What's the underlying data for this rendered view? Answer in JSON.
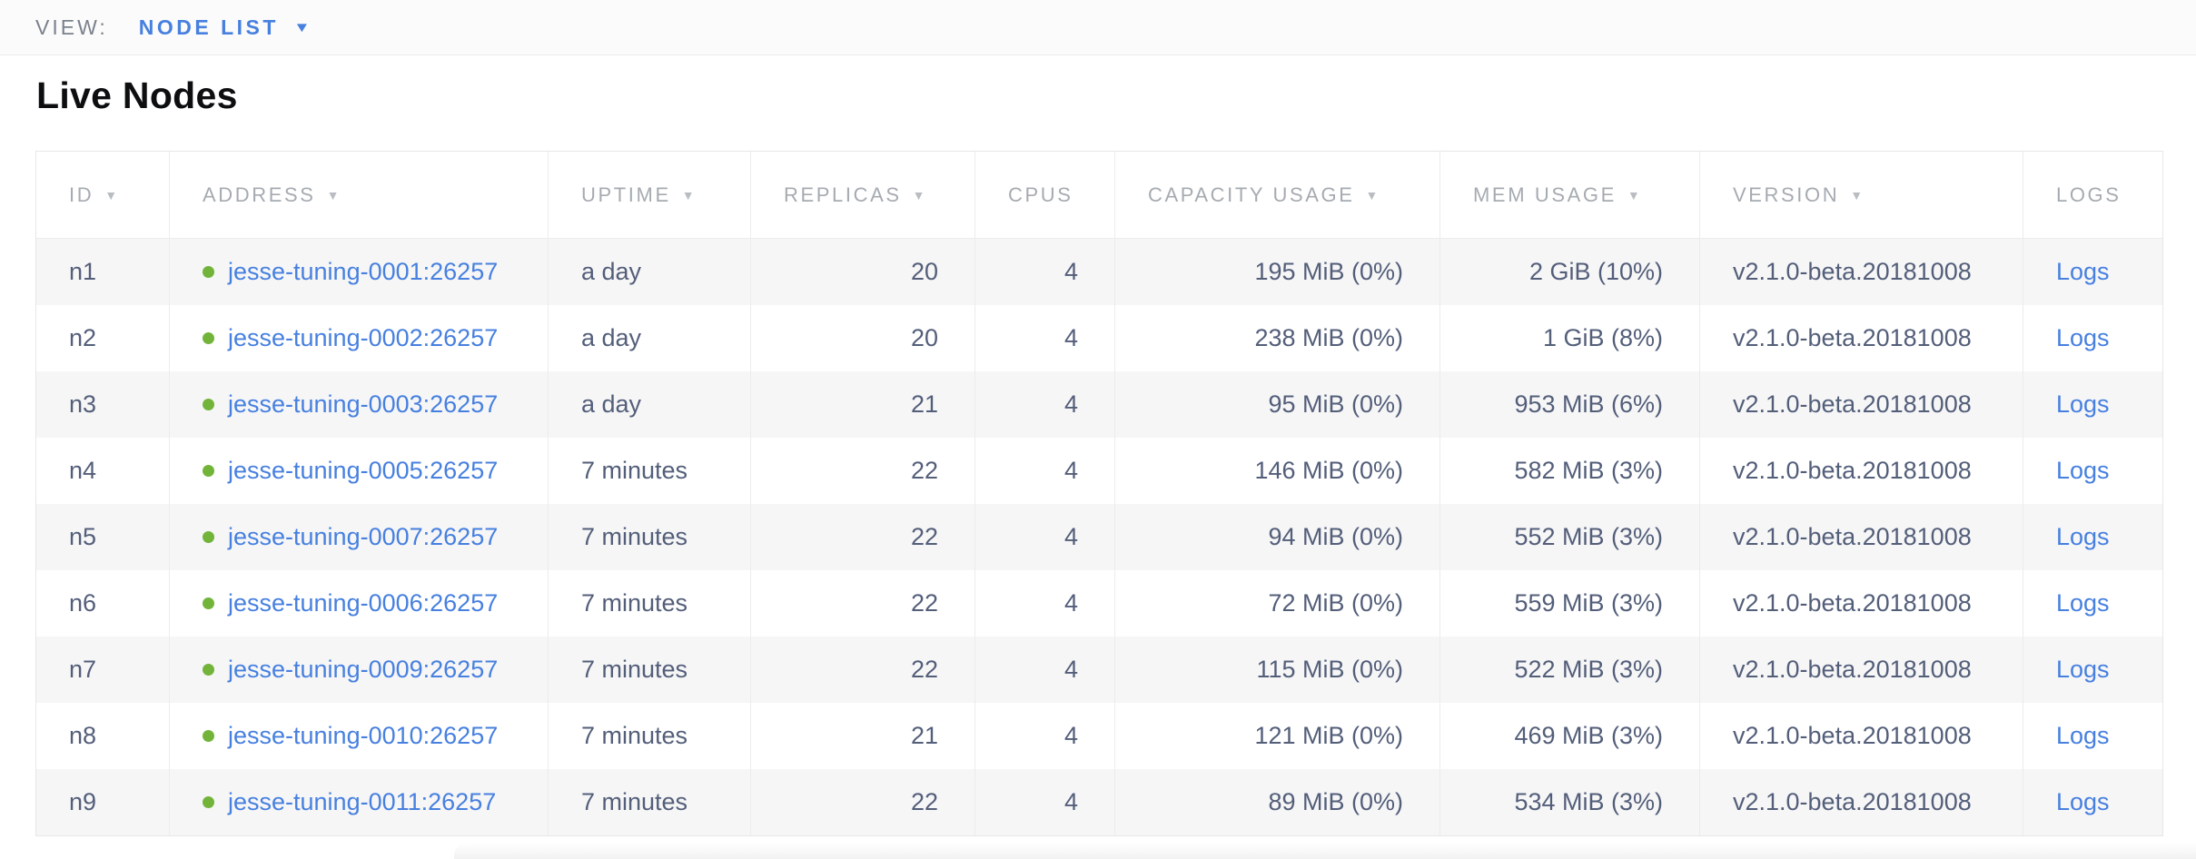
{
  "view_bar": {
    "label": "VIEW:",
    "selected": "NODE LIST",
    "caret_icon": "▼"
  },
  "page": {
    "title": "Live Nodes"
  },
  "colors": {
    "accent_blue": "#4780df",
    "live_green": "#72b43a"
  },
  "table": {
    "columns": [
      {
        "key": "id",
        "label": "ID",
        "sort_icon": "▼"
      },
      {
        "key": "address",
        "label": "ADDRESS",
        "sort_icon": "▼"
      },
      {
        "key": "uptime",
        "label": "UPTIME",
        "sort_icon": "▼"
      },
      {
        "key": "replicas",
        "label": "REPLICAS",
        "sort_icon": "▼"
      },
      {
        "key": "cpus",
        "label": "CPUS"
      },
      {
        "key": "capacity_usage",
        "label": "CAPACITY USAGE",
        "sort_icon": "▼"
      },
      {
        "key": "mem_usage",
        "label": "MEM USAGE",
        "sort_icon": "▼"
      },
      {
        "key": "version",
        "label": "VERSION",
        "sort_icon": "▼"
      },
      {
        "key": "logs",
        "label": "LOGS"
      }
    ],
    "rows": [
      {
        "id": "n1",
        "status": "live",
        "address": "jesse-tuning-0001:26257",
        "uptime": "a day",
        "replicas": "20",
        "cpus": "4",
        "capacity_usage": "195 MiB (0%)",
        "mem_usage": "2 GiB (10%)",
        "version": "v2.1.0-beta.20181008",
        "logs": "Logs"
      },
      {
        "id": "n2",
        "status": "live",
        "address": "jesse-tuning-0002:26257",
        "uptime": "a day",
        "replicas": "20",
        "cpus": "4",
        "capacity_usage": "238 MiB (0%)",
        "mem_usage": "1 GiB (8%)",
        "version": "v2.1.0-beta.20181008",
        "logs": "Logs"
      },
      {
        "id": "n3",
        "status": "live",
        "address": "jesse-tuning-0003:26257",
        "uptime": "a day",
        "replicas": "21",
        "cpus": "4",
        "capacity_usage": "95 MiB (0%)",
        "mem_usage": "953 MiB (6%)",
        "version": "v2.1.0-beta.20181008",
        "logs": "Logs"
      },
      {
        "id": "n4",
        "status": "live",
        "address": "jesse-tuning-0005:26257",
        "uptime": "7 minutes",
        "replicas": "22",
        "cpus": "4",
        "capacity_usage": "146 MiB (0%)",
        "mem_usage": "582 MiB (3%)",
        "version": "v2.1.0-beta.20181008",
        "logs": "Logs"
      },
      {
        "id": "n5",
        "status": "live",
        "address": "jesse-tuning-0007:26257",
        "uptime": "7 minutes",
        "replicas": "22",
        "cpus": "4",
        "capacity_usage": "94 MiB (0%)",
        "mem_usage": "552 MiB (3%)",
        "version": "v2.1.0-beta.20181008",
        "logs": "Logs"
      },
      {
        "id": "n6",
        "status": "live",
        "address": "jesse-tuning-0006:26257",
        "uptime": "7 minutes",
        "replicas": "22",
        "cpus": "4",
        "capacity_usage": "72 MiB (0%)",
        "mem_usage": "559 MiB (3%)",
        "version": "v2.1.0-beta.20181008",
        "logs": "Logs"
      },
      {
        "id": "n7",
        "status": "live",
        "address": "jesse-tuning-0009:26257",
        "uptime": "7 minutes",
        "replicas": "22",
        "cpus": "4",
        "capacity_usage": "115 MiB (0%)",
        "mem_usage": "522 MiB (3%)",
        "version": "v2.1.0-beta.20181008",
        "logs": "Logs"
      },
      {
        "id": "n8",
        "status": "live",
        "address": "jesse-tuning-0010:26257",
        "uptime": "7 minutes",
        "replicas": "21",
        "cpus": "4",
        "capacity_usage": "121 MiB (0%)",
        "mem_usage": "469 MiB (3%)",
        "version": "v2.1.0-beta.20181008",
        "logs": "Logs"
      },
      {
        "id": "n9",
        "status": "live",
        "address": "jesse-tuning-0011:26257",
        "uptime": "7 minutes",
        "replicas": "22",
        "cpus": "4",
        "capacity_usage": "89 MiB (0%)",
        "mem_usage": "534 MiB (3%)",
        "version": "v2.1.0-beta.20181008",
        "logs": "Logs"
      }
    ]
  }
}
